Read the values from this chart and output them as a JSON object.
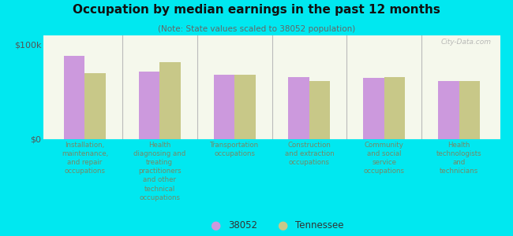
{
  "title": "Occupation by median earnings in the past 12 months",
  "subtitle": "(Note: State values scaled to 38052 population)",
  "categories": [
    "Installation,\nmaintenance,\nand repair\noccupations",
    "Health\ndiagnosing and\ntreating\npractitioners\nand other\ntechnical\noccupations",
    "Transportation\noccupations",
    "Construction\nand extraction\noccupations",
    "Community\nand social\nservice\noccupations",
    "Health\ntechnologists\nand\ntechnicians"
  ],
  "values_38052": [
    88000,
    72000,
    68000,
    66000,
    65000,
    62000
  ],
  "values_tennessee": [
    70000,
    82000,
    68000,
    62000,
    66000,
    62000
  ],
  "color_38052": "#cc99dd",
  "color_tennessee": "#c8c888",
  "background_outer": "#00e8f0",
  "background_inner_top": "#e8efd8",
  "background_inner_bottom": "#f5f8ec",
  "bar_width": 0.28,
  "ylim": [
    0,
    110000
  ],
  "yticks": [
    0,
    100000
  ],
  "ytick_labels": [
    "$0",
    "$100k"
  ],
  "legend_label_38052": "38052",
  "legend_label_tennessee": "Tennessee",
  "watermark": "City-Data.com",
  "label_color": "#778866",
  "title_color": "#111111",
  "subtitle_color": "#666666"
}
